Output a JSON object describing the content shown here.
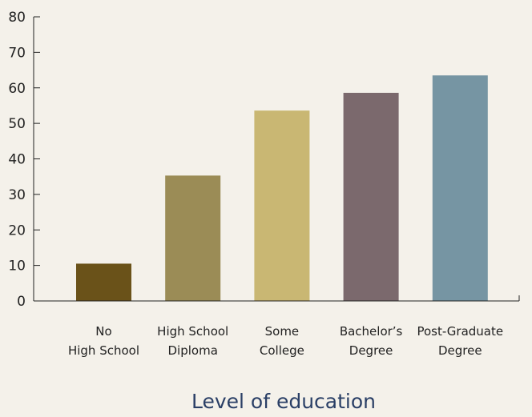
{
  "chart_data": {
    "type": "bar",
    "categories": [
      [
        "No",
        "High School"
      ],
      [
        "High School",
        "Diploma"
      ],
      [
        "Some",
        "College"
      ],
      [
        "Bachelor’s",
        "Degree"
      ],
      [
        "Post-Graduate",
        "Degree"
      ]
    ],
    "values": [
      10.5,
      35.3,
      53.6,
      58.6,
      63.5
    ],
    "colors": [
      "#6a5219",
      "#9b8c56",
      "#c9b773",
      "#7b696d",
      "#7695a3"
    ],
    "xlabel": "Level of education",
    "ylabel": "",
    "ylim": [
      0,
      80
    ],
    "yticks": [
      0,
      10,
      20,
      30,
      40,
      50,
      60,
      70,
      80
    ],
    "grid": false
  }
}
